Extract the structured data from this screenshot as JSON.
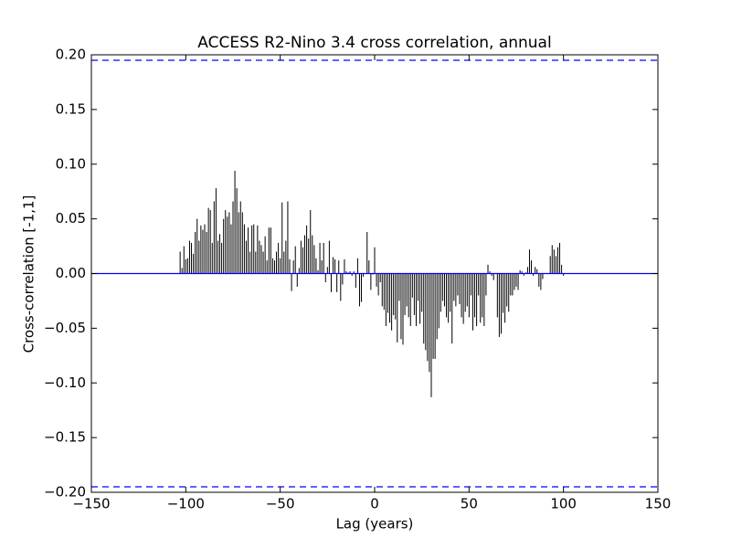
{
  "chart_data": {
    "type": "xcorr",
    "title": "ACCESS R2-Nino 3.4 cross correlation, annual",
    "xlabel": "Lag (years)",
    "ylabel": "Cross-correlation [-1,1]",
    "x": [
      -104,
      -103,
      -102,
      -101,
      -100,
      -99,
      -98,
      -97,
      -96,
      -95,
      -94,
      -93,
      -92,
      -91,
      -90,
      -89,
      -88,
      -87,
      -86,
      -85,
      -84,
      -83,
      -82,
      -81,
      -80,
      -79,
      -78,
      -77,
      -76,
      -75,
      -74,
      -73,
      -72,
      -71,
      -70,
      -69,
      -68,
      -67,
      -66,
      -65,
      -64,
      -63,
      -62,
      -61,
      -60,
      -59,
      -58,
      -57,
      -56,
      -55,
      -54,
      -53,
      -52,
      -51,
      -50,
      -49,
      -48,
      -47,
      -46,
      -45,
      -44,
      -43,
      -42,
      -41,
      -40,
      -39,
      -38,
      -37,
      -36,
      -35,
      -34,
      -33,
      -32,
      -31,
      -30,
      -29,
      -28,
      -27,
      -26,
      -25,
      -24,
      -23,
      -22,
      -21,
      -20,
      -19,
      -18,
      -17,
      -16,
      -15,
      -14,
      -13,
      -12,
      -11,
      -10,
      -9,
      -8,
      -7,
      -6,
      -5,
      -4,
      -3,
      -2,
      -1,
      0,
      1,
      2,
      3,
      4,
      5,
      6,
      7,
      8,
      9,
      10,
      11,
      12,
      13,
      14,
      15,
      16,
      17,
      18,
      19,
      20,
      21,
      22,
      23,
      24,
      25,
      26,
      27,
      28,
      29,
      30,
      31,
      32,
      33,
      34,
      35,
      36,
      37,
      38,
      39,
      40,
      41,
      42,
      43,
      44,
      45,
      46,
      47,
      48,
      49,
      50,
      51,
      52,
      53,
      54,
      55,
      56,
      57,
      58,
      59,
      60,
      61,
      62,
      63,
      64,
      65,
      66,
      67,
      68,
      69,
      70,
      71,
      72,
      73,
      74,
      75,
      76,
      77,
      78,
      79,
      80,
      81,
      82,
      83,
      84,
      85,
      86,
      87,
      88,
      89,
      90,
      91,
      92,
      93,
      94,
      95,
      96,
      97,
      98,
      99,
      100,
      101,
      102,
      103,
      104
    ],
    "values": [
      0.0,
      0.02,
      0.005,
      0.025,
      0.013,
      0.014,
      0.03,
      0.028,
      0.018,
      0.038,
      0.05,
      0.03,
      0.044,
      0.04,
      0.045,
      0.038,
      0.06,
      0.058,
      0.028,
      0.066,
      0.078,
      0.03,
      0.036,
      0.028,
      0.05,
      0.058,
      0.052,
      0.056,
      0.045,
      0.066,
      0.094,
      0.078,
      0.056,
      0.066,
      0.056,
      0.045,
      0.03,
      0.042,
      0.02,
      0.044,
      0.045,
      0.02,
      0.044,
      0.03,
      0.026,
      0.02,
      0.034,
      0.012,
      0.042,
      0.042,
      0.014,
      0.012,
      0.02,
      0.028,
      0.014,
      0.065,
      0.02,
      0.03,
      0.066,
      0.013,
      -0.016,
      0.012,
      0.025,
      -0.012,
      0.005,
      0.03,
      0.024,
      0.035,
      0.044,
      0.032,
      0.058,
      0.035,
      0.026,
      0.014,
      0.003,
      0.028,
      0.012,
      0.028,
      -0.008,
      0.006,
      0.03,
      -0.017,
      0.015,
      0.013,
      -0.017,
      0.012,
      -0.025,
      -0.01,
      0.013,
      0.002,
      0.001,
      0.002,
      -0.002,
      0.002,
      -0.013,
      0.014,
      -0.03,
      -0.026,
      -0.003,
      0.0,
      0.038,
      0.012,
      -0.015,
      -0.001,
      0.024,
      -0.012,
      -0.02,
      -0.008,
      -0.03,
      -0.033,
      -0.048,
      -0.036,
      -0.045,
      -0.052,
      -0.038,
      -0.042,
      -0.063,
      -0.025,
      -0.06,
      -0.065,
      -0.038,
      -0.03,
      -0.04,
      -0.048,
      -0.022,
      -0.038,
      -0.048,
      -0.025,
      -0.046,
      -0.035,
      -0.064,
      -0.07,
      -0.08,
      -0.09,
      -0.113,
      -0.078,
      -0.078,
      -0.06,
      -0.05,
      -0.035,
      -0.025,
      -0.03,
      -0.04,
      -0.045,
      -0.035,
      -0.064,
      -0.025,
      -0.03,
      -0.02,
      -0.028,
      -0.04,
      -0.046,
      -0.035,
      -0.03,
      -0.04,
      -0.02,
      -0.052,
      -0.04,
      -0.048,
      -0.02,
      -0.045,
      -0.04,
      -0.048,
      -0.02,
      0.008,
      0.002,
      -0.002,
      -0.006,
      0.0,
      -0.04,
      -0.058,
      -0.055,
      -0.036,
      -0.045,
      -0.03,
      -0.035,
      -0.02,
      -0.02,
      -0.015,
      -0.012,
      -0.015,
      0.003,
      0.002,
      -0.002,
      0.001,
      0.006,
      0.022,
      0.012,
      -0.002,
      0.006,
      0.004,
      -0.012,
      -0.015,
      -0.005,
      0.0,
      0.0,
      0.0,
      0.016,
      0.026,
      0.022,
      0.016,
      0.024,
      0.028,
      0.008,
      -0.002,
      0.0,
      0.0,
      0.0,
      0.0
    ],
    "color": "#000000",
    "zero_line_color": "#0000ff",
    "confidence": [
      0.195,
      -0.195
    ],
    "confidence_color": "#0000ff",
    "xlim": [
      -150,
      150
    ],
    "xticks": [
      {
        "value": -150,
        "label": "−150"
      },
      {
        "value": -100,
        "label": "−100"
      },
      {
        "value": -50,
        "label": "−50"
      },
      0,
      50,
      100,
      150
    ],
    "ylim": [
      -0.2,
      0.2
    ],
    "yticks": [
      {
        "value": -0.2,
        "label": "−0.20"
      },
      {
        "value": -0.15,
        "label": "−0.15"
      },
      {
        "value": -0.1,
        "label": "−0.10"
      },
      {
        "value": -0.05,
        "label": "−0.05"
      },
      {
        "value": 0,
        "label": "0.00"
      },
      {
        "value": 0.05,
        "label": "0.05"
      },
      {
        "value": 0.1,
        "label": "0.10"
      },
      {
        "value": 0.15,
        "label": "0.15"
      },
      {
        "value": 0.2,
        "label": "0.20"
      }
    ],
    "grid": false
  }
}
